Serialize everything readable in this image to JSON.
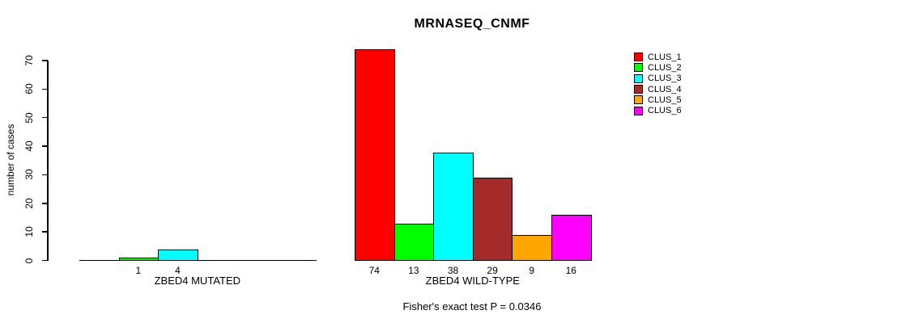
{
  "page": {
    "background": "#FFFFFF",
    "text_color": "#000000"
  },
  "chart_data": {
    "type": "bar",
    "title": "MRNASEQ_CNMF",
    "ylabel": "number of cases",
    "xlabel": "",
    "ylim": [
      0,
      70
    ],
    "yticks": [
      0,
      10,
      20,
      30,
      40,
      50,
      60,
      70
    ],
    "grid": false,
    "legend_position": "top-right",
    "categories": [
      "ZBED4 MUTATED",
      "ZBED4 WILD-TYPE"
    ],
    "series": [
      {
        "name": "CLUS_1",
        "color": "#FF0000",
        "values": [
          0,
          74
        ]
      },
      {
        "name": "CLUS_2",
        "color": "#00FF00",
        "values": [
          1,
          13
        ]
      },
      {
        "name": "CLUS_3",
        "color": "#00FFFF",
        "values": [
          4,
          38
        ]
      },
      {
        "name": "CLUS_4",
        "color": "#A52A2A",
        "values": [
          0,
          29
        ]
      },
      {
        "name": "CLUS_5",
        "color": "#FFA500",
        "values": [
          0,
          9
        ]
      },
      {
        "name": "CLUS_6",
        "color": "#FF00FF",
        "values": [
          0,
          16
        ]
      }
    ],
    "bar_value_labels": {
      "ZBED4 MUTATED": [
        "",
        "1",
        "4",
        "",
        "",
        ""
      ],
      "ZBED4 WILD-TYPE": [
        "74",
        "13",
        "38",
        "29",
        "9",
        "16"
      ]
    },
    "annotation": "Fisher's exact test P = 0.0346"
  }
}
